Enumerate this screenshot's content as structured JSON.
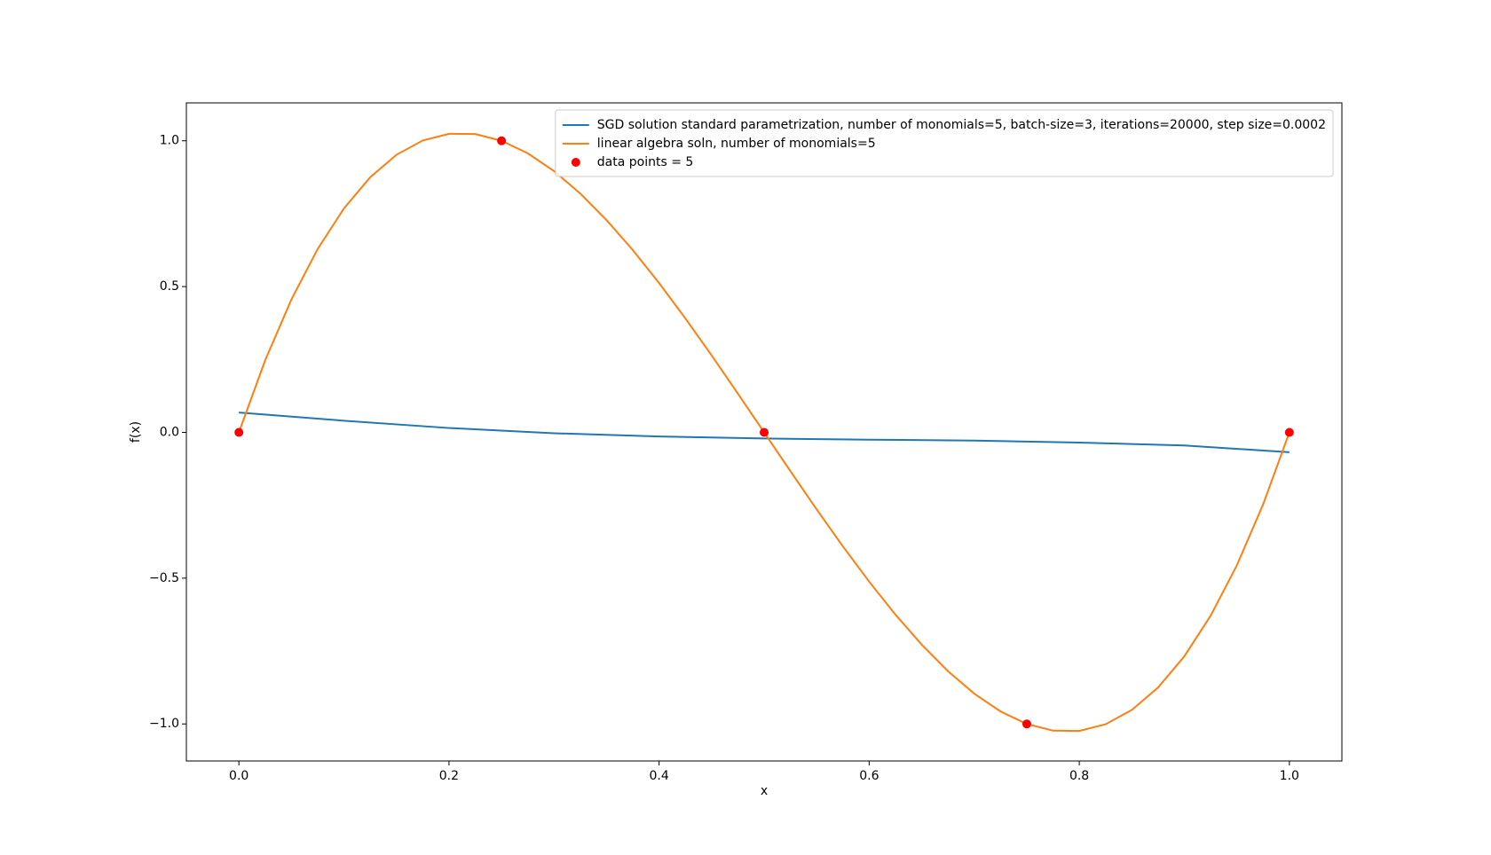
{
  "chart_data": {
    "type": "line",
    "xlabel": "x",
    "ylabel": "f(x)",
    "xlim": [
      -0.05,
      1.05
    ],
    "ylim": [
      -1.127,
      1.13
    ],
    "xticks": [
      {
        "value": 0,
        "label": "0.0"
      },
      {
        "value": 0.2,
        "label": "0.2"
      },
      {
        "value": 0.4,
        "label": "0.4"
      },
      {
        "value": 0.6,
        "label": "0.6"
      },
      {
        "value": 0.8,
        "label": "0.8"
      },
      {
        "value": 1,
        "label": "1.0"
      }
    ],
    "yticks": [
      {
        "value": -1,
        "label": "−1.0"
      },
      {
        "value": -0.5,
        "label": "−0.5"
      },
      {
        "value": 0,
        "label": "0.0"
      },
      {
        "value": 0.5,
        "label": "0.5"
      },
      {
        "value": 1,
        "label": "1.0"
      }
    ],
    "legend": "upper right",
    "series": [
      {
        "name": "SGD solution standard parametrization, number of monomials=5, batch-size=3, iterations=20000, step size=0.0002",
        "color": "#1f77b4",
        "style": "line",
        "x": [
          0,
          0.1,
          0.2,
          0.3,
          0.4,
          0.5,
          0.6,
          0.7,
          0.8,
          0.9,
          1
        ],
        "values": [
          0.068,
          0.04,
          0.015,
          -0.003,
          -0.014,
          -0.021,
          -0.025,
          -0.028,
          -0.035,
          -0.045,
          -0.068
        ]
      },
      {
        "name": "linear algebra soln, number of monomials=5",
        "color": "#ff7f0e",
        "style": "line",
        "x": [
          0,
          0.025,
          0.05,
          0.075,
          0.1,
          0.125,
          0.15,
          0.175,
          0.2,
          0.225,
          0.25,
          0.275,
          0.3,
          0.325,
          0.35,
          0.375,
          0.4,
          0.425,
          0.45,
          0.475,
          0.5,
          0.525,
          0.55,
          0.575,
          0.6,
          0.625,
          0.65,
          0.675,
          0.7,
          0.725,
          0.75,
          0.775,
          0.8,
          0.825,
          0.85,
          0.875,
          0.9,
          0.925,
          0.95,
          0.975,
          1
        ],
        "values": [
          0,
          0.247,
          0.456,
          0.629,
          0.768,
          0.875,
          0.952,
          1.001,
          1.024,
          1.023,
          1,
          0.957,
          0.896,
          0.819,
          0.728,
          0.625,
          0.512,
          0.391,
          0.264,
          0.133,
          0,
          -0.133,
          -0.264,
          -0.391,
          -0.512,
          -0.625,
          -0.728,
          -0.819,
          -0.896,
          -0.957,
          -1,
          -1.023,
          -1.024,
          -1.001,
          -0.952,
          -0.875,
          -0.768,
          -0.629,
          -0.456,
          -0.247,
          0
        ]
      },
      {
        "name": "data points = 5",
        "color": "#ff0000",
        "style": "points",
        "x": [
          0,
          0.25,
          0.5,
          0.75,
          1
        ],
        "values": [
          0,
          1,
          0,
          -1,
          0
        ]
      }
    ]
  }
}
